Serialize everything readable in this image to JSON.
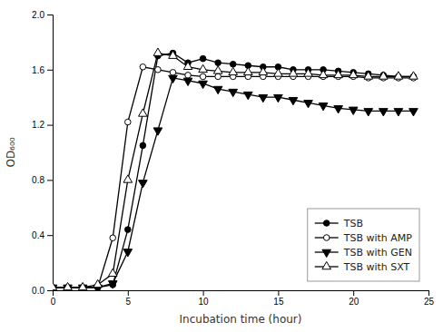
{
  "chart_data": {
    "type": "line",
    "xlabel": "Incubation time (hour)",
    "ylabel": "OD₆₀₀",
    "x": [
      0,
      1,
      2,
      3,
      4,
      5,
      6,
      7,
      8,
      9,
      10,
      11,
      12,
      13,
      14,
      15,
      16,
      17,
      18,
      19,
      20,
      21,
      22,
      23,
      24
    ],
    "xlim": [
      0,
      25
    ],
    "ylim": [
      0,
      2.0
    ],
    "xticks": [
      0,
      5,
      10,
      15,
      20,
      25
    ],
    "yticks": [
      {
        "value": 0.0,
        "label": "0.0"
      },
      0.4,
      0.8,
      1.2,
      1.6,
      {
        "value": 2.0,
        "label": "2.0"
      }
    ],
    "grid": false,
    "legend": "lower right",
    "series": [
      {
        "name": "TSB",
        "color": "black",
        "marker": "circle",
        "values": [
          0.02,
          0.02,
          0.02,
          0.02,
          0.04,
          0.44,
          1.05,
          1.7,
          1.72,
          1.65,
          1.68,
          1.65,
          1.64,
          1.63,
          1.62,
          1.62,
          1.6,
          1.6,
          1.6,
          1.59,
          1.58,
          1.57,
          1.56,
          1.55,
          1.55
        ]
      },
      {
        "name": "TSB with AMP",
        "color": "black",
        "marker": "circle-open",
        "values": [
          0.02,
          0.02,
          0.02,
          0.02,
          0.38,
          1.22,
          1.62,
          1.6,
          1.58,
          1.56,
          1.55,
          1.55,
          1.55,
          1.55,
          1.55,
          1.55,
          1.55,
          1.55,
          1.55,
          1.55,
          1.55,
          1.54,
          1.54,
          1.54,
          1.54
        ]
      },
      {
        "name": "TSB with GEN",
        "color": "black",
        "marker": "triangle-down",
        "values": [
          0.02,
          0.02,
          0.02,
          0.02,
          0.05,
          0.28,
          0.78,
          1.16,
          1.54,
          1.52,
          1.5,
          1.46,
          1.44,
          1.42,
          1.4,
          1.4,
          1.38,
          1.36,
          1.34,
          1.32,
          1.31,
          1.3,
          1.3,
          1.3,
          1.3
        ]
      },
      {
        "name": "TSB with SXT",
        "color": "black",
        "marker": "triangle-up-open",
        "values": [
          0.02,
          0.02,
          0.02,
          0.04,
          0.12,
          0.8,
          1.28,
          1.72,
          1.7,
          1.62,
          1.6,
          1.59,
          1.58,
          1.58,
          1.58,
          1.57,
          1.57,
          1.57,
          1.56,
          1.56,
          1.56,
          1.55,
          1.55,
          1.55,
          1.55
        ]
      }
    ]
  }
}
